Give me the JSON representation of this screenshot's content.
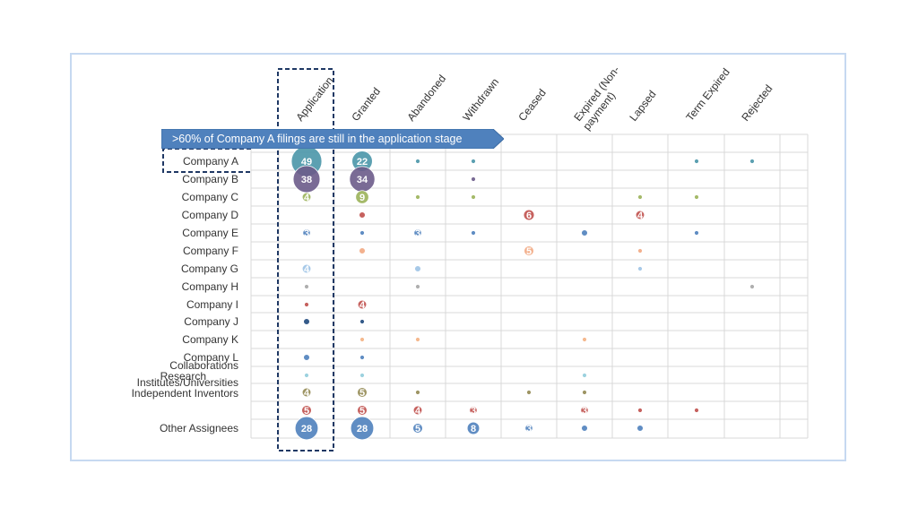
{
  "chart_data": {
    "type": "bubble-matrix",
    "columns": [
      "Application",
      "Granted",
      "Abandoned",
      "Withdrawn",
      "Ceased",
      "Expired (Non-payment)",
      "Lapsed",
      "Term Expired",
      "Rejected"
    ],
    "rows": [
      {
        "label": "Company A",
        "color": "#4a96a8",
        "values": [
          49,
          22,
          1,
          1,
          0,
          0,
          0,
          1,
          1
        ]
      },
      {
        "label": "Company B",
        "color": "#6b5b8a",
        "values": [
          38,
          34,
          0,
          1,
          0,
          0,
          0,
          0,
          0
        ]
      },
      {
        "label": "Company C",
        "color": "#9bb25a",
        "values": [
          4,
          9,
          1,
          1,
          0,
          0,
          1,
          1,
          0
        ]
      },
      {
        "label": "Company D",
        "color": "#c0504d",
        "values": [
          0,
          2,
          0,
          0,
          6,
          0,
          4,
          0,
          0
        ]
      },
      {
        "label": "Company E",
        "color": "#4f81bd",
        "values": [
          3,
          1,
          3,
          1,
          0,
          2,
          0,
          1,
          0
        ]
      },
      {
        "label": "Company F",
        "color": "#f2a982",
        "values": [
          0,
          2,
          0,
          0,
          5,
          0,
          1,
          0,
          0
        ]
      },
      {
        "label": "Company G",
        "color": "#9dc3e6",
        "values": [
          4,
          0,
          2,
          0,
          0,
          0,
          1,
          0,
          0
        ]
      },
      {
        "label": "Company H",
        "color": "#a6a6a6",
        "values": [
          1,
          0,
          1,
          0,
          0,
          0,
          0,
          0,
          1
        ]
      },
      {
        "label": "Company I",
        "color": "#c0504d",
        "values": [
          1,
          4,
          0,
          0,
          0,
          0,
          0,
          0,
          0
        ]
      },
      {
        "label": "Company J",
        "color": "#1f497d",
        "values": [
          2,
          1,
          0,
          0,
          0,
          0,
          0,
          0,
          0
        ]
      },
      {
        "label": "Company K",
        "color": "#f4b183",
        "values": [
          0,
          1,
          1,
          0,
          0,
          1,
          0,
          0,
          0
        ]
      },
      {
        "label": "Company L",
        "color": "#4f81bd",
        "values": [
          2,
          1,
          0,
          0,
          0,
          0,
          0,
          0,
          0
        ]
      },
      {
        "label": "Research Collaborations",
        "lines": [
          "Collaborations",
          "Research"
        ],
        "color": "#92cddc",
        "values": [
          1,
          1,
          0,
          0,
          0,
          1,
          0,
          0,
          0
        ]
      },
      {
        "label": "Independent Inventors Institutes/Universities",
        "lines": [
          "Institutes/Universities",
          "Independent Inventors"
        ],
        "color": "#938953",
        "values": [
          4,
          5,
          1,
          0,
          1,
          1,
          0,
          0,
          0
        ]
      },
      {
        "label": "",
        "color": "#c0504d",
        "values": [
          5,
          5,
          4,
          3,
          0,
          3,
          1,
          1,
          0
        ]
      },
      {
        "label": "Other Assignees",
        "color": "#4f81bd",
        "values": [
          28,
          28,
          5,
          8,
          3,
          2,
          2,
          0,
          0
        ]
      }
    ],
    "labeled_threshold": 3
  },
  "callout": {
    "text": ">60% of Company A filings are still in the application stage"
  },
  "colors": {
    "grid": "#d9d9d9",
    "highlight_border": "#1f3864",
    "callout_fill": "#4f81bd",
    "frame": "#c6d9f1"
  }
}
